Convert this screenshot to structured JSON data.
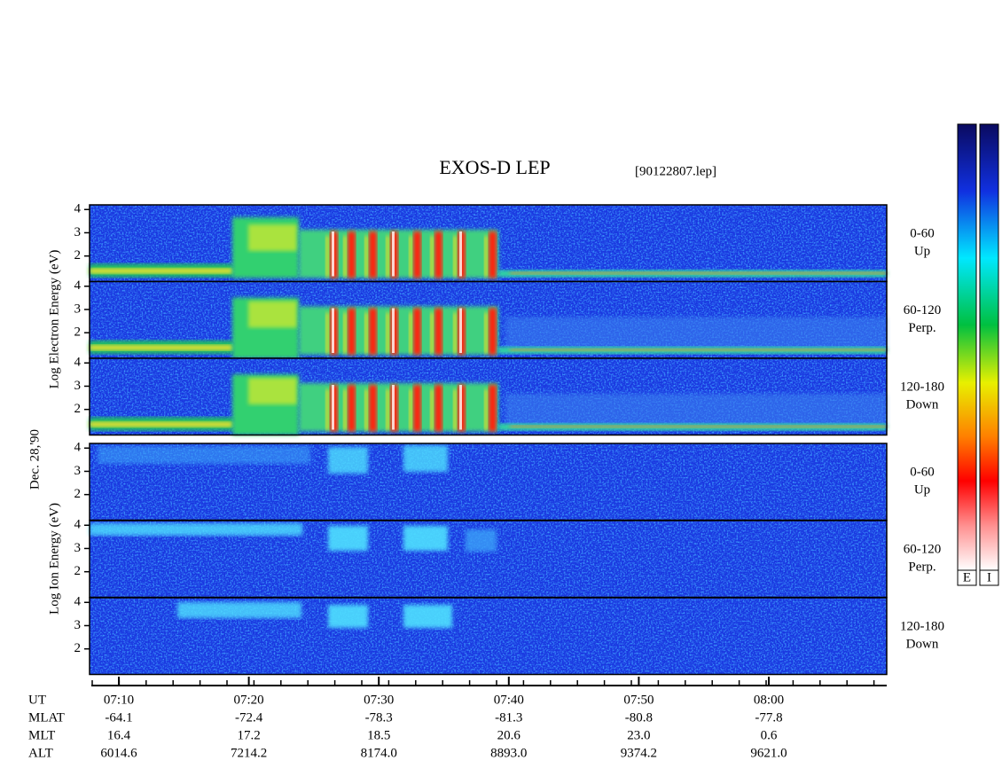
{
  "header": {
    "title": "EXOS-D LEP",
    "file": "[90122807.lep]",
    "date": "Dec. 28,'90"
  },
  "electron": {
    "axis_label": "Log Electron Energy (eV)",
    "panels": [
      {
        "range": "0-60",
        "direction": "Up"
      },
      {
        "range": "60-120",
        "direction": "Perp."
      },
      {
        "range": "120-180",
        "direction": "Down"
      }
    ]
  },
  "ion": {
    "axis_label": "Log Ion Energy (eV)",
    "panels": [
      {
        "range": "0-60",
        "direction": "Up"
      },
      {
        "range": "60-120",
        "direction": "Perp."
      },
      {
        "range": "120-180",
        "direction": "Down"
      }
    ]
  },
  "energy_ylim": [
    0.9,
    4.2
  ],
  "energy_ticks": [
    4,
    3,
    2
  ],
  "colorbars": [
    "E",
    "I"
  ],
  "ephemeris": {
    "row_labels": [
      "UT",
      "MLAT",
      "MLT",
      "ALT"
    ],
    "ut": [
      "07:10",
      "07:20",
      "07:30",
      "07:40",
      "07:50",
      "08:00"
    ],
    "mlat": [
      "-64.1",
      "-72.4",
      "-78.3",
      "-81.3",
      "-80.8",
      "-77.8"
    ],
    "mlt": [
      "16.4",
      "17.2",
      "18.5",
      "20.6",
      "23.0",
      "0.6"
    ],
    "alt": [
      "6014.6",
      "7214.2",
      "8174.0",
      "8893.0",
      "9374.2",
      "9621.0"
    ]
  }
}
